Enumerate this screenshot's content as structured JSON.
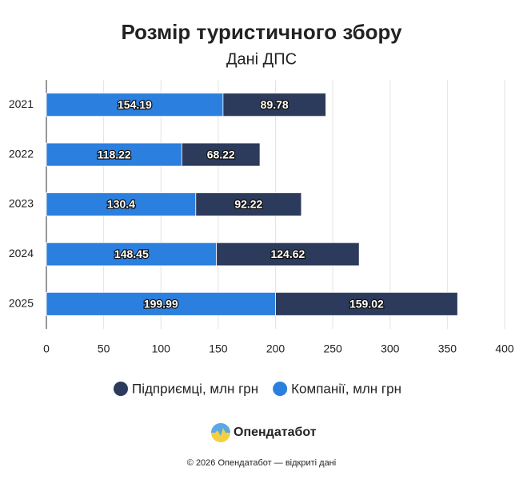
{
  "chart_data": {
    "type": "stacked-barh",
    "title": "Розмір туристичного збору",
    "subtitle": "Дані ДПС",
    "categories": [
      "2021",
      "2022",
      "2023",
      "2024",
      "2025"
    ],
    "series": [
      {
        "name": "Компанії, млн грн",
        "color": "#2b7fde",
        "values": [
          154.19,
          118.22,
          130.4,
          148.45,
          199.99
        ]
      },
      {
        "name": "Підприємці, млн грн",
        "color": "#2c3a5c",
        "values": [
          89.78,
          68.22,
          92.22,
          124.62,
          159.02
        ]
      }
    ],
    "xlim": [
      0,
      400
    ],
    "xticks": [
      0,
      50,
      100,
      150,
      200,
      250,
      300,
      350,
      400
    ],
    "grid": true
  },
  "brand": "Опендатабот",
  "copyright": "© 2026 Опендатабот — відкриті дані"
}
